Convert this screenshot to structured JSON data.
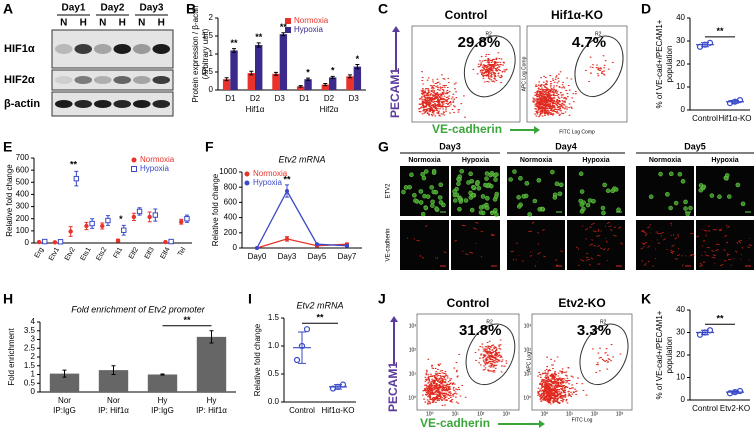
{
  "chart_data": [
    {
      "label": "B",
      "type": "bar",
      "ylabel": [
        "Protein expression / β-actin",
        "(Arbitrary unit)"
      ],
      "categories": [
        "D1",
        "D2",
        "D3",
        "D1",
        "D2",
        "D3"
      ],
      "groups": [
        "Hif1α",
        "Hif2α"
      ],
      "series": [
        {
          "name": "Normoxia",
          "color": "#e8322b",
          "values": [
            0.3,
            0.47,
            0.45,
            0.1,
            0.15,
            0.38
          ],
          "errors": [
            0.04,
            0.05,
            0.04,
            0.02,
            0.03,
            0.04
          ]
        },
        {
          "name": "Hypoxia",
          "color": "#3b2a8c",
          "values": [
            1.1,
            1.25,
            1.55,
            0.3,
            0.35,
            0.65
          ],
          "errors": [
            0.05,
            0.06,
            0.04,
            0.03,
            0.03,
            0.06
          ],
          "stars": [
            "**",
            "**",
            "**",
            "*",
            "*",
            "*"
          ]
        }
      ],
      "ylim": [
        0,
        2
      ],
      "yticks": [
        0,
        0.5,
        1,
        1.5,
        2
      ]
    },
    {
      "label": "D",
      "type": "dotplot",
      "ylabel": [
        "% of VE-cad+/PECAM1+",
        "population"
      ],
      "categories": [
        "Control",
        "Hif1α-KO"
      ],
      "points": [
        [
          27.5,
          28.4,
          29.2
        ],
        [
          3.0,
          3.6,
          4.3
        ]
      ],
      "values": [
        28.4,
        3.6
      ],
      "errors": [
        0.9,
        0.6
      ],
      "color": "#3949c9",
      "significance": "**",
      "ylim": [
        0,
        40
      ],
      "yticks": [
        0,
        10,
        20,
        30,
        40
      ]
    },
    {
      "label": "E",
      "type": "dot",
      "ylabel": [
        "Relative fold change"
      ],
      "categories": [
        "Erg",
        "Etv1",
        "Etv2",
        "Ets1",
        "Ets2",
        "Fli1",
        "Elf2",
        "Elf3",
        "Elf4",
        "Tel"
      ],
      "series": [
        {
          "name": "Normoxia",
          "color": "#e8322b",
          "marker": "circle",
          "values": [
            8,
            6,
            95,
            140,
            140,
            20,
            215,
            215,
            8,
            175
          ],
          "errors": [
            3,
            3,
            40,
            30,
            25,
            10,
            30,
            40,
            3,
            20
          ]
        },
        {
          "name": "Hypoxia",
          "color": "#3949c9",
          "marker": "square",
          "values": [
            12,
            10,
            530,
            160,
            185,
            105,
            260,
            230,
            12,
            200
          ],
          "errors": [
            4,
            4,
            60,
            40,
            40,
            40,
            30,
            50,
            4,
            30
          ],
          "stars": [
            null,
            null,
            "**",
            null,
            null,
            "*",
            null,
            null,
            null,
            null
          ]
        }
      ],
      "ylim": [
        0,
        700
      ],
      "yticks": [
        0,
        100,
        200,
        300,
        400,
        500,
        600,
        700
      ]
    },
    {
      "label": "F",
      "type": "line",
      "title": "Etv2 mRNA",
      "ylabel": [
        "Relative fold change"
      ],
      "categories": [
        "Day0",
        "Day3",
        "Day5",
        "Day7"
      ],
      "series": [
        {
          "name": "Normoxia",
          "color": "#e8322b",
          "values": [
            0,
            120,
            30,
            50
          ],
          "errors": [
            0,
            30,
            10,
            15
          ]
        },
        {
          "name": "Hypoxia",
          "color": "#3949c9",
          "values": [
            0,
            750,
            50,
            30
          ],
          "errors": [
            0,
            80,
            10,
            10
          ],
          "stars": [
            null,
            "**",
            null,
            null
          ]
        }
      ],
      "ylim": [
        0,
        1000
      ],
      "yticks": [
        0,
        200,
        400,
        600,
        800,
        1000
      ]
    },
    {
      "label": "H",
      "type": "bar",
      "title": "Fold enrichment of Etv2 promoter",
      "ylabel": [
        "Fold enrichment"
      ],
      "categories": [
        [
          "Nor",
          "IP:IgG"
        ],
        [
          "Nor",
          "IP: Hif1α"
        ],
        [
          "Hy",
          "IP:IgG"
        ],
        [
          "Hy",
          "IP: Hif1α"
        ]
      ],
      "values": [
        1.05,
        1.25,
        1.0,
        3.15
      ],
      "errors": [
        0.2,
        0.25,
        0.03,
        0.35
      ],
      "color": "#666666",
      "significance": "**",
      "ylim": [
        0,
        4
      ],
      "yticks": [
        0,
        0.5,
        1,
        1.5,
        2,
        2.5,
        3,
        3.5,
        4
      ]
    },
    {
      "label": "I",
      "type": "dotplot",
      "title": "Etv2 mRNA",
      "ylabel": [
        "Relative fold change"
      ],
      "categories": [
        "Control",
        "Hif1α-KO"
      ],
      "points": [
        [
          0.75,
          1.0,
          1.3
        ],
        [
          0.24,
          0.27,
          0.31
        ]
      ],
      "values": [
        0.97,
        0.27
      ],
      "errors": [
        0.28,
        0.04
      ],
      "color": "#3949c9",
      "significance": "**",
      "ylim": [
        0,
        1.5
      ],
      "yticks": [
        {
          "value": 0,
          "label": "0.0"
        },
        0.5,
        {
          "value": 1,
          "label": "1.0"
        },
        1.5
      ]
    },
    {
      "label": "K",
      "type": "dotplot",
      "ylabel": [
        "% of VE-cad+/PECAM1+",
        "population"
      ],
      "categories": [
        "Control",
        "Etv2-KO"
      ],
      "points": [
        [
          29,
          30,
          31
        ],
        [
          3,
          3.5,
          4
        ]
      ],
      "values": [
        30,
        3.5
      ],
      "errors": [
        1,
        0.5
      ],
      "color": "#3949c9",
      "significance": "**",
      "ylim": [
        0,
        40
      ],
      "yticks": [
        0,
        10,
        20,
        30,
        40
      ]
    }
  ],
  "blot": {
    "label": "A",
    "days": [
      "Day1",
      "Day2",
      "Day3"
    ],
    "conditions": [
      "N",
      "H",
      "N",
      "H",
      "N",
      "H"
    ],
    "rows": [
      "HIF1α",
      "HIF2α",
      "β-actin"
    ]
  },
  "flow": [
    {
      "label": "C",
      "ylabel": "PECAM1",
      "xlabel": "VE-cadherin",
      "plots": [
        {
          "title": "Control",
          "percent": "29.8%",
          "gate": "R2"
        },
        {
          "title": "Hif1α-KO",
          "percent": "4.7%",
          "gate": "R2",
          "yaxis": "APC Log Comp",
          "xaxis": "FITC Log Comp"
        }
      ]
    },
    {
      "label": "J",
      "ylabel": "PECAM1",
      "xlabel": "VE-cadherin",
      "ticks": [
        "10⁰",
        "10¹",
        "10²",
        "10³"
      ],
      "plots": [
        {
          "title": "Control",
          "percent": "31.8%",
          "gate": "R2"
        },
        {
          "title": "Etv2-KO",
          "percent": "3.3%",
          "gate": "R2",
          "yaxis": "APC Log",
          "xaxis": "FITC Log"
        }
      ]
    }
  ],
  "microscopy": {
    "label": "G",
    "days": [
      "Day3",
      "Day4",
      "Day5"
    ],
    "conditions": [
      "Normoxia",
      "Hypoxia",
      "Normoxia",
      "Hypoxia",
      "Normoxia",
      "Hypoxia"
    ],
    "rows": [
      "ETV2",
      "VE-cadherin"
    ]
  }
}
